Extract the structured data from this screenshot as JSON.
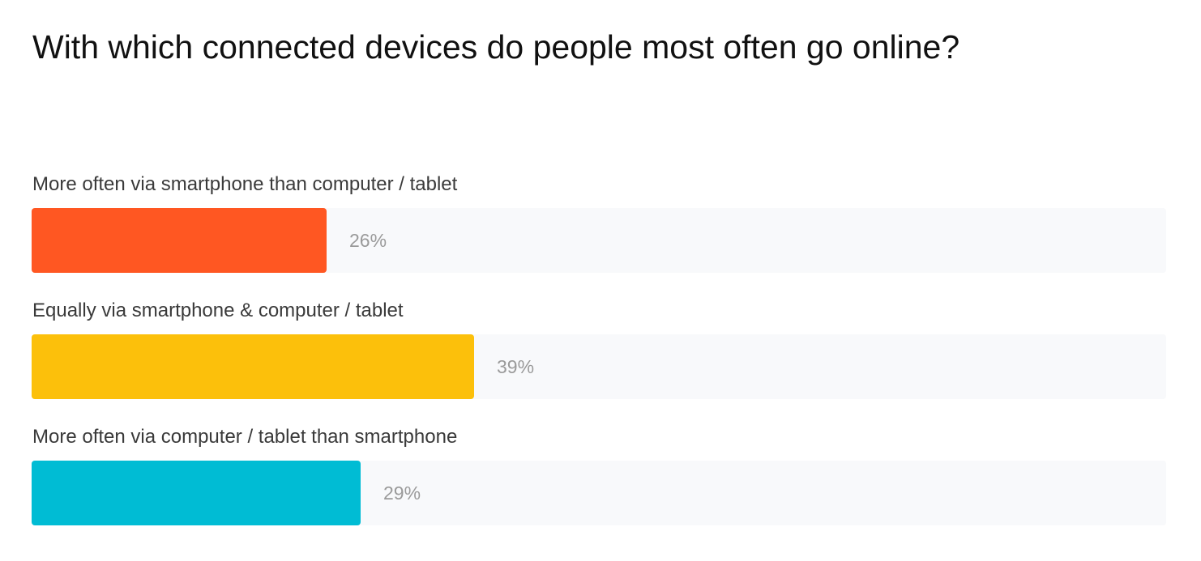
{
  "chart_data": {
    "type": "bar",
    "orientation": "horizontal",
    "title": "With which connected devices do people most often go online?",
    "categories": [
      "More often via smartphone than computer / tablet",
      "Equally via smartphone & computer / tablet",
      "More often via computer / tablet than smartphone"
    ],
    "values": [
      26,
      39,
      29
    ],
    "value_labels": [
      "26%",
      "39%",
      "29%"
    ],
    "colors": [
      "#ff5722",
      "#fcc00b",
      "#00bcd4"
    ],
    "track_color": "#f8f9fb",
    "xlim": [
      0,
      100
    ],
    "grid": false,
    "legend": "none"
  }
}
